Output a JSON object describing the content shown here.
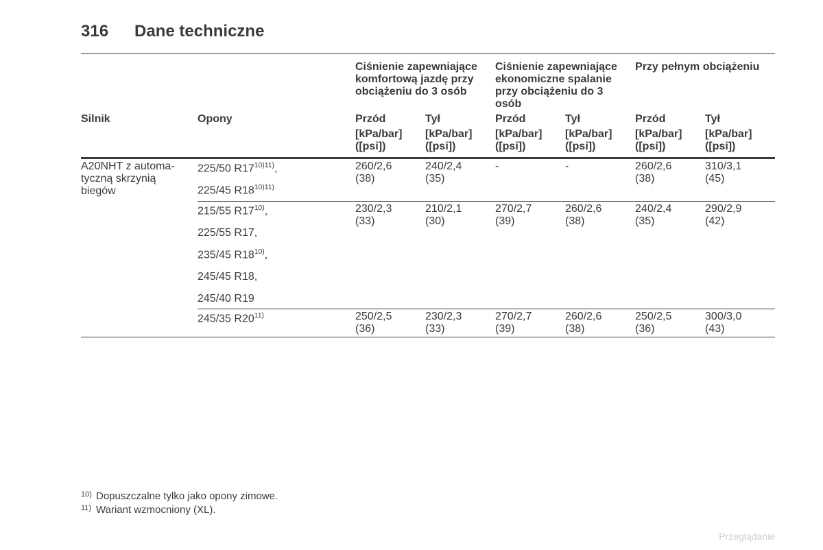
{
  "page": {
    "number": "316",
    "title": "Dane techniczne"
  },
  "table": {
    "group_headers": {
      "comfort": "Ciśnienie zapewniające komfortową jazdę przy obciążeniu do 3 osób",
      "eco": "Ciśnienie zapewniające ekonomiczne spalanie przy obciążeniu do 3 osób",
      "full": "Przy pełnym obciążeniu"
    },
    "col_headers": {
      "engine": "Silnik",
      "tyres": "Opony",
      "front": "Przód",
      "rear": "Tył",
      "units": "[kPa/bar] ([psi])"
    },
    "engine": "A20NHT z automa-\ntyczną skrzynią biegów",
    "rows": [
      {
        "tyres": [
          {
            "t": "225/50 R17",
            "s": "10)11)",
            "comma": true
          },
          {
            "t": "225/45 R18",
            "s": "10)11)",
            "comma": false
          }
        ],
        "v": [
          "260/2,6 (38)",
          "240/2,4 (35)",
          "-",
          "-",
          "260/2,6 (38)",
          "310/3,1 (45)"
        ]
      },
      {
        "tyres": [
          {
            "t": "215/55 R17",
            "s": "10)",
            "comma": true
          },
          {
            "t": "225/55 R17",
            "s": "",
            "comma": true
          },
          {
            "t": "235/45 R18",
            "s": "10)",
            "comma": true
          },
          {
            "t": "245/45 R18",
            "s": "",
            "comma": true
          },
          {
            "t": "245/40 R19",
            "s": "",
            "comma": false
          }
        ],
        "v": [
          "230/2,3 (33)",
          "210/2,1 (30)",
          "270/2,7 (39)",
          "260/2,6 (38)",
          "240/2,4 (35)",
          "290/2,9 (42)"
        ]
      },
      {
        "tyres": [
          {
            "t": "245/35 R20",
            "s": "11)",
            "comma": false
          }
        ],
        "v": [
          "250/2,5 (36)",
          "230/2,3 (33)",
          "270/2,7 (39)",
          "260/2,6 (38)",
          "250/2,5 (36)",
          "300/3,0 (43)"
        ]
      }
    ]
  },
  "footnotes": [
    {
      "mark": "10)",
      "text": "Dopuszczalne tylko jako opony zimowe."
    },
    {
      "mark": "11)",
      "text": "Wariant wzmocniony (XL)."
    }
  ],
  "watermark": "Przeglądanie"
}
